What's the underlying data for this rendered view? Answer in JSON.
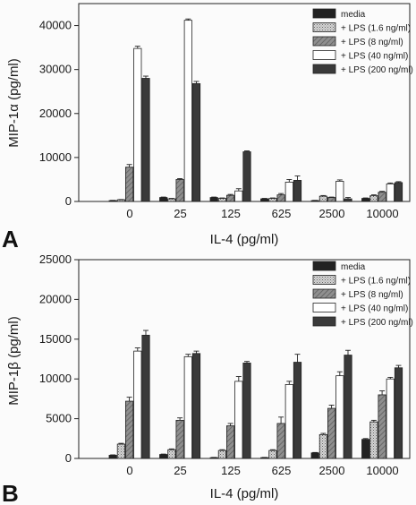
{
  "panels": [
    {
      "letter": "A",
      "chart_data": {
        "type": "bar",
        "xlabel": "IL-4 (pg/ml)",
        "ylabel": "MIP-1α (pg/ml)",
        "categories": [
          "0",
          "25",
          "125",
          "625",
          "2500",
          "10000"
        ],
        "ylim": [
          0,
          45000
        ],
        "yticks": [
          "0",
          "10000",
          "20000",
          "30000",
          "40000"
        ],
        "legend_position": "top-right",
        "series": [
          {
            "name": "media",
            "color": "#222222",
            "pattern": "solid-dark",
            "values": [
              200,
              900,
              900,
              600,
              200,
              700
            ],
            "errors": [
              50,
              100,
              100,
              100,
              50,
              100
            ]
          },
          {
            "name": "+ LPS (1.6 ng/ml)",
            "color": "#bdbdbd",
            "pattern": "dots",
            "values": [
              400,
              600,
              700,
              700,
              1200,
              1300
            ],
            "errors": [
              50,
              100,
              100,
              100,
              150,
              200
            ]
          },
          {
            "name": "+ LPS (8 ng/ml)",
            "color": "#8a8a8a",
            "pattern": "hatch",
            "values": [
              7800,
              5000,
              1400,
              1500,
              900,
              2100
            ],
            "errors": [
              600,
              200,
              200,
              300,
              100,
              200
            ]
          },
          {
            "name": "+ LPS (40 ng/ml)",
            "color": "#ffffff",
            "pattern": "open",
            "values": [
              34800,
              41200,
              2400,
              4400,
              4600,
              4000
            ],
            "errors": [
              500,
              300,
              500,
              600,
              300,
              200
            ]
          },
          {
            "name": "+ LPS (200 ng/ml)",
            "color": "#3a3a3a",
            "pattern": "solid",
            "values": [
              28000,
              26800,
              11300,
              4800,
              600,
              4300
            ],
            "errors": [
              500,
              500,
              200,
              1000,
              300,
              200
            ]
          }
        ]
      }
    },
    {
      "letter": "B",
      "chart_data": {
        "type": "bar",
        "xlabel": "IL-4 (pg/ml)",
        "ylabel": "MIP-1β (pg/ml)",
        "categories": [
          "0",
          "25",
          "125",
          "625",
          "2500",
          "10000"
        ],
        "ylim": [
          0,
          25000
        ],
        "yticks": [
          "0",
          "5000",
          "10000",
          "15000",
          "20000",
          "25000"
        ],
        "legend_position": "top-right",
        "series": [
          {
            "name": "media",
            "color": "#222222",
            "pattern": "solid-dark",
            "values": [
              400,
              500,
              100,
              100,
              700,
              2400
            ],
            "errors": [
              50,
              50,
              30,
              30,
              50,
              100
            ]
          },
          {
            "name": "+ LPS (1.6 ng/ml)",
            "color": "#bdbdbd",
            "pattern": "dots",
            "values": [
              1800,
              1100,
              1000,
              1000,
              3000,
              4600
            ],
            "errors": [
              100,
              100,
              100,
              100,
              150,
              200
            ]
          },
          {
            "name": "+ LPS (8 ng/ml)",
            "color": "#8a8a8a",
            "pattern": "hatch",
            "values": [
              7200,
              4800,
              4100,
              4400,
              6300,
              8000
            ],
            "errors": [
              500,
              300,
              300,
              800,
              400,
              500
            ]
          },
          {
            "name": "+ LPS (40 ng/ml)",
            "color": "#ffffff",
            "pattern": "open",
            "values": [
              13500,
              12800,
              9700,
              9300,
              10400,
              10000
            ],
            "errors": [
              400,
              300,
              600,
              400,
              500,
              200
            ]
          },
          {
            "name": "+ LPS (200 ng/ml)",
            "color": "#3a3a3a",
            "pattern": "solid",
            "values": [
              15500,
              13200,
              12000,
              12100,
              13000,
              11400
            ],
            "errors": [
              600,
              300,
              200,
              1000,
              600,
              300
            ]
          }
        ]
      }
    }
  ]
}
